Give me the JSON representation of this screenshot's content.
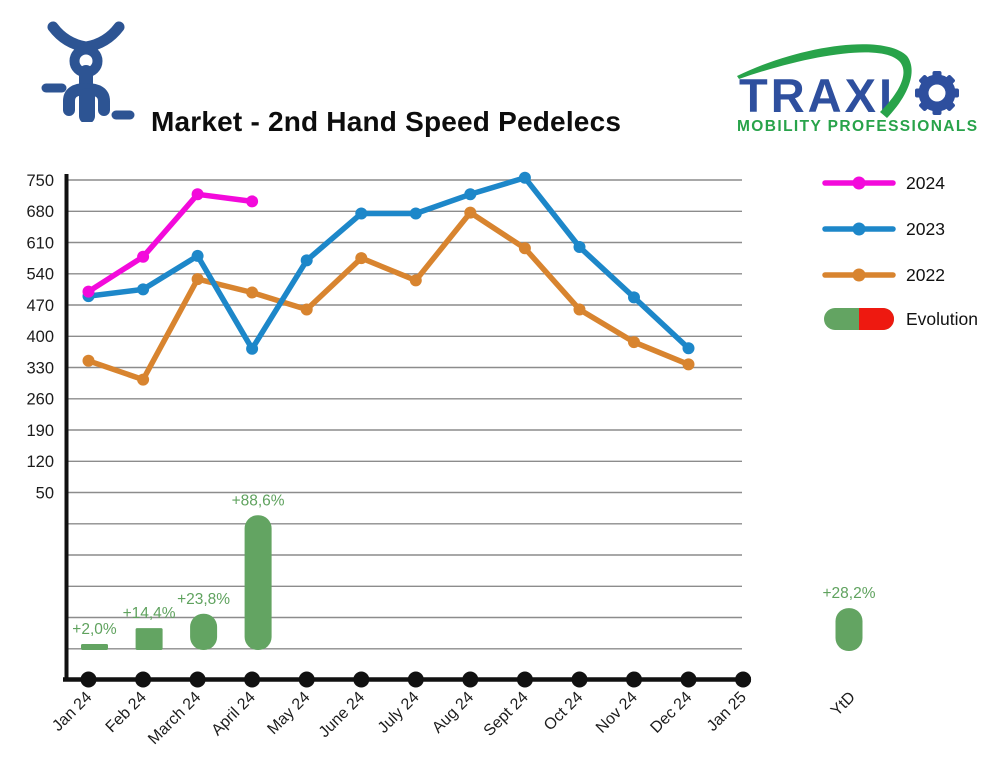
{
  "header": {
    "title": "Market - 2nd Hand Speed Pedelecs",
    "bike_icon": "moped-front-icon",
    "logo": {
      "brand": "TRAXI",
      "brand_o_icon": "gear-icon",
      "tagline": "MOBILITY PROFESSIONALS"
    }
  },
  "legend": {
    "series": [
      {
        "label": "2024",
        "type": "line",
        "color": "#f30adb"
      },
      {
        "label": "2023",
        "type": "line",
        "color": "#1d87c9"
      },
      {
        "label": "2022",
        "type": "line",
        "color": "#d8842f"
      },
      {
        "label": "Evolution",
        "type": "pill",
        "colors": [
          "#63a462",
          "#ee1910"
        ]
      }
    ]
  },
  "chart_data": {
    "type": "combo line+bar",
    "title": "Market - 2nd Hand Speed Pedelecs",
    "categories": [
      "Jan 24",
      "Feb 24",
      "March 24",
      "April 24",
      "May 24",
      "June 24",
      "July 24",
      "Aug 24",
      "Sept 24",
      "Oct 24",
      "Nov 24",
      "Dec 24",
      "Jan 25"
    ],
    "y_axis": {
      "ticks": [
        750,
        680,
        610,
        540,
        470,
        400,
        330,
        260,
        190,
        120,
        50
      ],
      "grid": true,
      "unlabeled_gridlines_below": 5
    },
    "series": [
      {
        "name": "2024",
        "color": "#f30adb",
        "values": [
          500,
          578,
          718,
          702
        ]
      },
      {
        "name": "2023",
        "color": "#1d87c9",
        "values": [
          490,
          505,
          580,
          372,
          570,
          675,
          675,
          718,
          755,
          600,
          487,
          373
        ]
      },
      {
        "name": "2022",
        "color": "#d8842f",
        "values": [
          345,
          303,
          528,
          498,
          460,
          575,
          525,
          677,
          597,
          460,
          387,
          337
        ]
      }
    ],
    "evolution": {
      "name": "Evolution",
      "bar_color": "#63a462",
      "label_color": "#5fa25e",
      "values_pct": [
        2.0,
        14.4,
        23.8,
        88.6
      ],
      "labels": [
        "+2,0%",
        "+14,4%",
        "+23,8%",
        "+88,6%"
      ]
    },
    "ytd": {
      "label": "YtD",
      "value_pct": 28.2,
      "value_label": "+28,2%"
    },
    "legend_position": "right"
  },
  "colors": {
    "axis": "#111111",
    "gridline": "#8c8c8c",
    "tick_text": "#1c1c1c",
    "traxio_blue": "#2e4f9e",
    "traxio_green": "#28a34a",
    "bike_blue": "#2d5493"
  }
}
